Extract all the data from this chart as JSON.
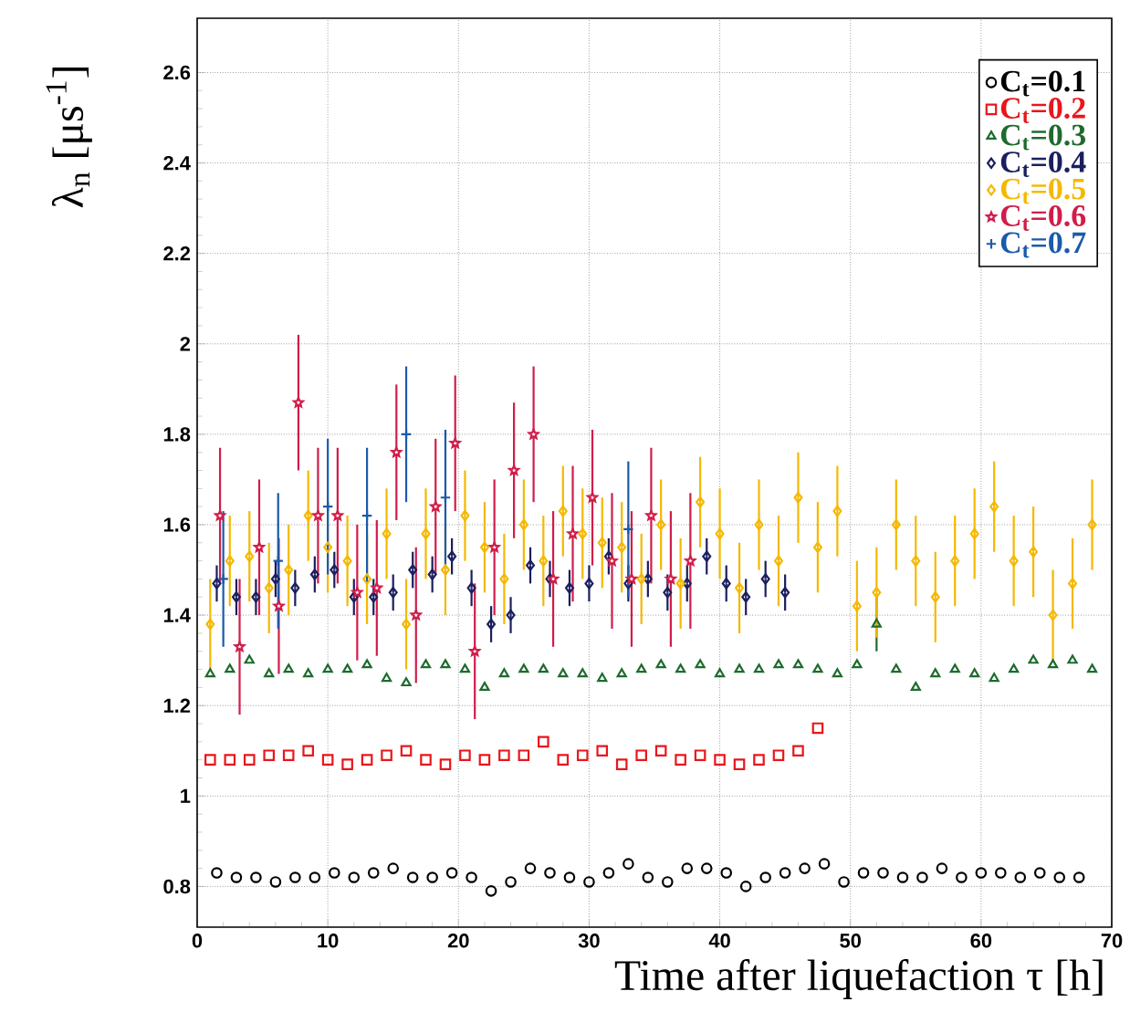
{
  "chart_data": {
    "type": "scatter",
    "xlabel": "Time after liquefaction τ [h]",
    "ylabel": "λ$_{n}$ [μs$^{-1}$]",
    "xlim": [
      0,
      70
    ],
    "ylim": [
      0.71,
      2.72
    ],
    "xticks": [
      0,
      10,
      20,
      30,
      40,
      50,
      60,
      70
    ],
    "yticks": [
      0.8,
      1,
      1.2,
      1.4,
      1.6,
      1.8,
      2,
      2.2,
      2.4,
      2.6
    ],
    "grid": true,
    "legend": "top right",
    "series": [
      {
        "name": "C$_{t}$=0.1",
        "color": "#000000",
        "marker": "circle",
        "x": [
          1.5,
          3,
          4.5,
          6,
          7.5,
          9,
          10.5,
          12,
          13.5,
          15,
          16.5,
          18,
          19.5,
          21,
          22.5,
          24,
          25.5,
          27,
          28.5,
          30,
          31.5,
          33,
          34.5,
          36,
          37.5,
          39,
          40.5,
          42,
          43.5,
          45,
          46.5,
          48,
          49.5,
          51,
          52.5,
          54,
          55.5,
          57,
          58.5,
          60,
          61.5,
          63,
          64.5,
          66,
          67.5
        ],
        "values": [
          0.83,
          0.82,
          0.82,
          0.81,
          0.82,
          0.82,
          0.83,
          0.82,
          0.83,
          0.84,
          0.82,
          0.82,
          0.83,
          0.82,
          0.79,
          0.81,
          0.84,
          0.83,
          0.82,
          0.81,
          0.83,
          0.85,
          0.82,
          0.81,
          0.84,
          0.84,
          0.83,
          0.8,
          0.82,
          0.83,
          0.84,
          0.85,
          0.81,
          0.83,
          0.83,
          0.82,
          0.82,
          0.84,
          0.82,
          0.83,
          0.83,
          0.82,
          0.83,
          0.82,
          0.82
        ]
      },
      {
        "name": "C$_{t}$=0.2",
        "color": "#e8161b",
        "marker": "square",
        "x": [
          1,
          2.5,
          4,
          5.5,
          7,
          8.5,
          10,
          11.5,
          13,
          14.5,
          16,
          17.5,
          19,
          20.5,
          22,
          23.5,
          25,
          26.5,
          28,
          29.5,
          31,
          32.5,
          34,
          35.5,
          37,
          38.5,
          40,
          41.5,
          43,
          44.5,
          46,
          47.5
        ],
        "values": [
          1.08,
          1.08,
          1.08,
          1.09,
          1.09,
          1.1,
          1.08,
          1.07,
          1.08,
          1.09,
          1.1,
          1.08,
          1.07,
          1.09,
          1.08,
          1.09,
          1.09,
          1.12,
          1.08,
          1.09,
          1.1,
          1.07,
          1.09,
          1.1,
          1.08,
          1.09,
          1.08,
          1.07,
          1.08,
          1.09,
          1.1,
          1.15
        ]
      },
      {
        "name": "C$_{t}$=0.3",
        "color": "#1e6b2e",
        "marker": "triangle",
        "x": [
          1,
          2.5,
          4,
          5.5,
          7,
          8.5,
          10,
          11.5,
          13,
          14.5,
          16,
          17.5,
          19,
          20.5,
          22,
          23.5,
          25,
          26.5,
          28,
          29.5,
          31,
          32.5,
          34,
          35.5,
          37,
          38.5,
          40,
          41.5,
          43,
          44.5,
          46,
          47.5,
          49,
          50.5,
          52,
          53.5,
          55,
          56.5,
          58,
          59.5,
          61,
          62.5,
          64,
          65.5,
          67,
          68.5
        ],
        "values": [
          1.27,
          1.28,
          1.3,
          1.27,
          1.28,
          1.27,
          1.28,
          1.28,
          1.29,
          1.26,
          1.25,
          1.29,
          1.29,
          1.28,
          1.24,
          1.27,
          1.28,
          1.28,
          1.27,
          1.27,
          1.26,
          1.27,
          1.28,
          1.29,
          1.28,
          1.29,
          1.27,
          1.28,
          1.28,
          1.29,
          1.29,
          1.28,
          1.27,
          1.29,
          1.38,
          1.28,
          1.24,
          1.27,
          1.28,
          1.27,
          1.26,
          1.28,
          1.3,
          1.29,
          1.3,
          1.28
        ],
        "errors": [
          null,
          null,
          null,
          null,
          null,
          null,
          null,
          null,
          null,
          null,
          null,
          null,
          null,
          null,
          null,
          null,
          null,
          null,
          null,
          null,
          null,
          null,
          null,
          null,
          null,
          null,
          null,
          null,
          null,
          null,
          null,
          null,
          null,
          null,
          0.06,
          null,
          null,
          null,
          null,
          null,
          null,
          null,
          null,
          null,
          null,
          null
        ]
      },
      {
        "name": "C$_{t}$=0.4",
        "color": "#1b1f5e",
        "marker": "diamond",
        "x": [
          1.5,
          3,
          4.5,
          6,
          7.5,
          9,
          10.5,
          12,
          13.5,
          15,
          16.5,
          18,
          19.5,
          21,
          22.5,
          24,
          25.5,
          27,
          28.5,
          30,
          31.5,
          33,
          34.5,
          36,
          37.5,
          39,
          40.5,
          42,
          43.5,
          45
        ],
        "values": [
          1.47,
          1.44,
          1.44,
          1.48,
          1.46,
          1.49,
          1.5,
          1.44,
          1.44,
          1.45,
          1.5,
          1.49,
          1.53,
          1.46,
          1.38,
          1.4,
          1.51,
          1.48,
          1.46,
          1.47,
          1.53,
          1.47,
          1.48,
          1.45,
          1.47,
          1.53,
          1.47,
          1.44,
          1.48,
          1.45
        ],
        "errors": [
          0.04,
          0.04,
          0.04,
          0.04,
          0.04,
          0.04,
          0.04,
          0.04,
          0.04,
          0.04,
          0.04,
          0.04,
          0.04,
          0.04,
          0.04,
          0.04,
          0.04,
          0.04,
          0.04,
          0.04,
          0.04,
          0.04,
          0.04,
          0.04,
          0.04,
          0.04,
          0.04,
          0.04,
          0.04,
          0.04
        ]
      },
      {
        "name": "C$_{t}$=0.5",
        "color": "#f5b800",
        "marker": "diamond",
        "x": [
          1,
          2.5,
          4,
          5.5,
          7,
          8.5,
          10,
          11.5,
          13,
          14.5,
          16,
          17.5,
          19,
          20.5,
          22,
          23.5,
          25,
          26.5,
          28,
          29.5,
          31,
          32.5,
          34,
          35.5,
          37,
          38.5,
          40,
          41.5,
          43,
          44.5,
          46,
          47.5,
          49,
          50.5,
          52,
          53.5,
          55,
          56.5,
          58,
          59.5,
          61,
          62.5,
          64,
          65.5,
          67,
          68.5
        ],
        "values": [
          1.38,
          1.52,
          1.53,
          1.46,
          1.5,
          1.62,
          1.55,
          1.52,
          1.48,
          1.58,
          1.38,
          1.58,
          1.5,
          1.62,
          1.55,
          1.48,
          1.6,
          1.52,
          1.63,
          1.58,
          1.56,
          1.55,
          1.48,
          1.6,
          1.47,
          1.65,
          1.58,
          1.46,
          1.6,
          1.52,
          1.66,
          1.55,
          1.63,
          1.42,
          1.45,
          1.6,
          1.52,
          1.44,
          1.52,
          1.58,
          1.64,
          1.52,
          1.54,
          1.4,
          1.47,
          1.6
        ],
        "errors": [
          0.1,
          0.1,
          0.1,
          0.1,
          0.1,
          0.1,
          0.1,
          0.1,
          0.1,
          0.1,
          0.1,
          0.1,
          0.1,
          0.1,
          0.1,
          0.1,
          0.1,
          0.1,
          0.1,
          0.1,
          0.1,
          0.1,
          0.1,
          0.1,
          0.1,
          0.1,
          0.1,
          0.1,
          0.1,
          0.1,
          0.1,
          0.1,
          0.1,
          0.1,
          0.1,
          0.1,
          0.1,
          0.1,
          0.1,
          0.1,
          0.1,
          0.1,
          0.1,
          0.1,
          0.1,
          0.1
        ]
      },
      {
        "name": "C$_{t}$=0.6",
        "color": "#d01d4a",
        "marker": "star",
        "x": [
          1.75,
          3.25,
          4.75,
          6.25,
          7.75,
          9.25,
          10.75,
          12.25,
          13.75,
          15.25,
          16.75,
          18.25,
          19.75,
          21.25,
          22.75,
          24.25,
          25.75,
          27.25,
          28.75,
          30.25,
          31.75,
          33.25,
          34.75,
          36.25,
          37.75
        ],
        "values": [
          1.62,
          1.33,
          1.55,
          1.42,
          1.87,
          1.62,
          1.62,
          1.45,
          1.46,
          1.76,
          1.4,
          1.64,
          1.78,
          1.32,
          1.55,
          1.72,
          1.8,
          1.48,
          1.58,
          1.66,
          1.52,
          1.48,
          1.62,
          1.48,
          1.52
        ],
        "errors": [
          0.15,
          0.15,
          0.15,
          0.15,
          0.15,
          0.15,
          0.15,
          0.15,
          0.15,
          0.15,
          0.15,
          0.15,
          0.15,
          0.15,
          0.15,
          0.15,
          0.15,
          0.15,
          0.15,
          0.15,
          0.15,
          0.15,
          0.15,
          0.15,
          0.15
        ]
      },
      {
        "name": "C$_{t}$=0.7",
        "color": "#1a5aaa",
        "marker": "cross",
        "x": [
          2,
          6.2,
          10,
          13,
          16,
          19,
          33
        ],
        "values": [
          1.48,
          1.52,
          1.64,
          1.62,
          1.8,
          1.66,
          1.59
        ],
        "errors": [
          0.15,
          0.15,
          0.15,
          0.15,
          0.15,
          0.15,
          0.15
        ]
      }
    ]
  }
}
